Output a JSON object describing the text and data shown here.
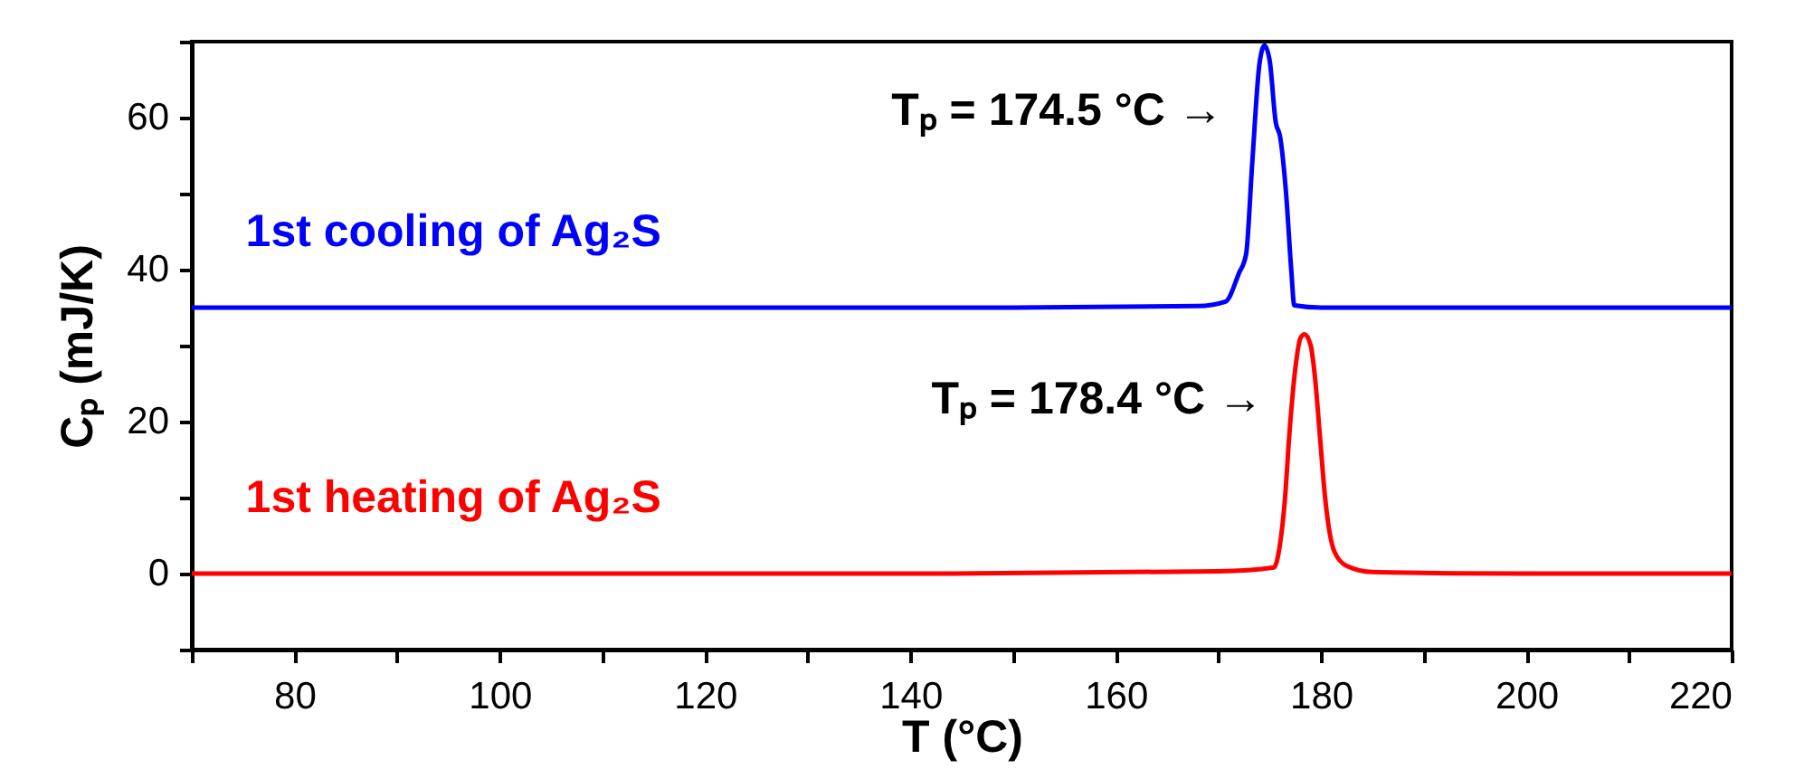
{
  "chart_data": {
    "type": "line",
    "xlabel": "T (°C)",
    "ylabel": "Cₚ (mJ/K)",
    "xlim": [
      70,
      220
    ],
    "ylim": [
      -10,
      70
    ],
    "xticks": [
      {
        "value": 70,
        "label": null
      },
      80,
      {
        "value": 90,
        "label": null
      },
      100,
      {
        "value": 110,
        "label": null
      },
      120,
      {
        "value": 130,
        "label": null
      },
      140,
      {
        "value": 150,
        "label": null
      },
      160,
      {
        "value": 170,
        "label": null
      },
      180,
      {
        "value": 190,
        "label": null
      },
      200,
      {
        "value": 210,
        "label": null
      },
      220
    ],
    "yticks": [
      {
        "value": -10,
        "label": null
      },
      0,
      {
        "value": 10,
        "label": null
      },
      20,
      {
        "value": 30,
        "label": null
      },
      40,
      {
        "value": 50,
        "label": null
      },
      60,
      {
        "value": 70,
        "label": null
      }
    ],
    "grid": false,
    "series": [
      {
        "name": "1st cooling of Ag₂S",
        "color": "#0000ff",
        "x": [
          70,
          100,
          150,
          168,
          170.7,
          172,
          172.7,
          173.3,
          174,
          174.5,
          175,
          175.6,
          176,
          176.6,
          177.1,
          177.4,
          180,
          200,
          220
        ],
        "values": [
          35,
          35,
          35,
          35.2,
          35.8,
          39.5,
          42,
          54,
          67,
          69.5,
          67.5,
          59.3,
          57.6,
          50,
          40,
          35.3,
          35,
          35,
          35
        ]
      },
      {
        "name": "1st heating of Ag₂S",
        "color": "#ff0000",
        "x": [
          70,
          100,
          140,
          170,
          175.4,
          176,
          176.5,
          176.9,
          177.5,
          178,
          178.4,
          179,
          179.4,
          179.9,
          180.4,
          181.3,
          182.5,
          185,
          200,
          220
        ],
        "values": [
          0,
          0,
          0,
          0.3,
          0.8,
          3.8,
          10,
          18,
          27,
          31,
          31.5,
          30,
          26,
          18,
          10,
          2.9,
          1,
          0.2,
          0,
          0
        ]
      }
    ],
    "annotations": [
      {
        "text": "Tₚ = 174.5 °C →",
        "x": 174.5,
        "y": 69.5
      },
      {
        "text": "Tₚ = 178.4 °C →",
        "x": 178.4,
        "y": 31.5
      }
    ]
  }
}
